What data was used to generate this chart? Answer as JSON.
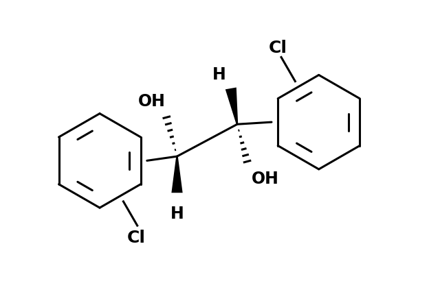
{
  "bg_color": "#ffffff",
  "line_color": "#000000",
  "line_width": 2.2,
  "font_size_label": 17,
  "figsize": [
    6.4,
    4.27
  ],
  "dpi": 100,
  "xlim": [
    0,
    10
  ],
  "ylim": [
    0,
    6.7
  ]
}
